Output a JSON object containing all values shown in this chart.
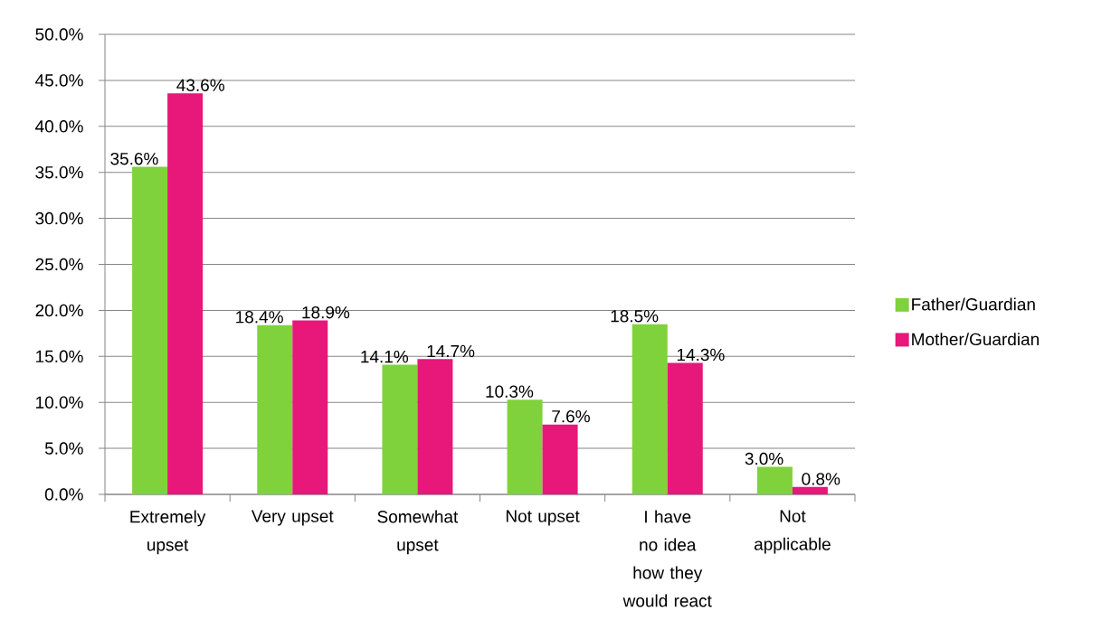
{
  "chart_data": {
    "type": "bar",
    "categories": [
      "Extremely upset",
      "Very upset",
      "Somewhat upset",
      "Not upset",
      "I have no idea how they would react",
      "Not applicable"
    ],
    "series": [
      {
        "name": "Father/Guardian",
        "color": "#80d23c",
        "values": [
          35.6,
          18.4,
          14.1,
          10.3,
          18.5,
          3.0
        ],
        "value_labels": [
          "35.6%",
          "18.4%",
          "14.1%",
          "10.3%",
          "18.5%",
          "3.0%"
        ]
      },
      {
        "name": "Mother/Guardian",
        "color": "#e8177a",
        "values": [
          43.6,
          18.9,
          14.7,
          7.6,
          14.3,
          0.8
        ],
        "value_labels": [
          "43.6%",
          "18.9%",
          "14.7%",
          "7.6%",
          "14.3%",
          "0.8%"
        ]
      }
    ],
    "ylim": [
      0,
      50
    ],
    "yticks": [
      {
        "value": 0,
        "label": "0.0%"
      },
      {
        "value": 5,
        "label": "5.0%"
      },
      {
        "value": 10,
        "label": "10.0%"
      },
      {
        "value": 15,
        "label": "15.0%"
      },
      {
        "value": 20,
        "label": "20.0%"
      },
      {
        "value": 25,
        "label": "25.0%"
      },
      {
        "value": 30,
        "label": "30.0%"
      },
      {
        "value": 35,
        "label": "35.0%"
      },
      {
        "value": 40,
        "label": "40.0%"
      },
      {
        "value": 45,
        "label": "45.0%"
      },
      {
        "value": 50,
        "label": "50.0%"
      }
    ],
    "grid": "y",
    "legend": "right"
  }
}
